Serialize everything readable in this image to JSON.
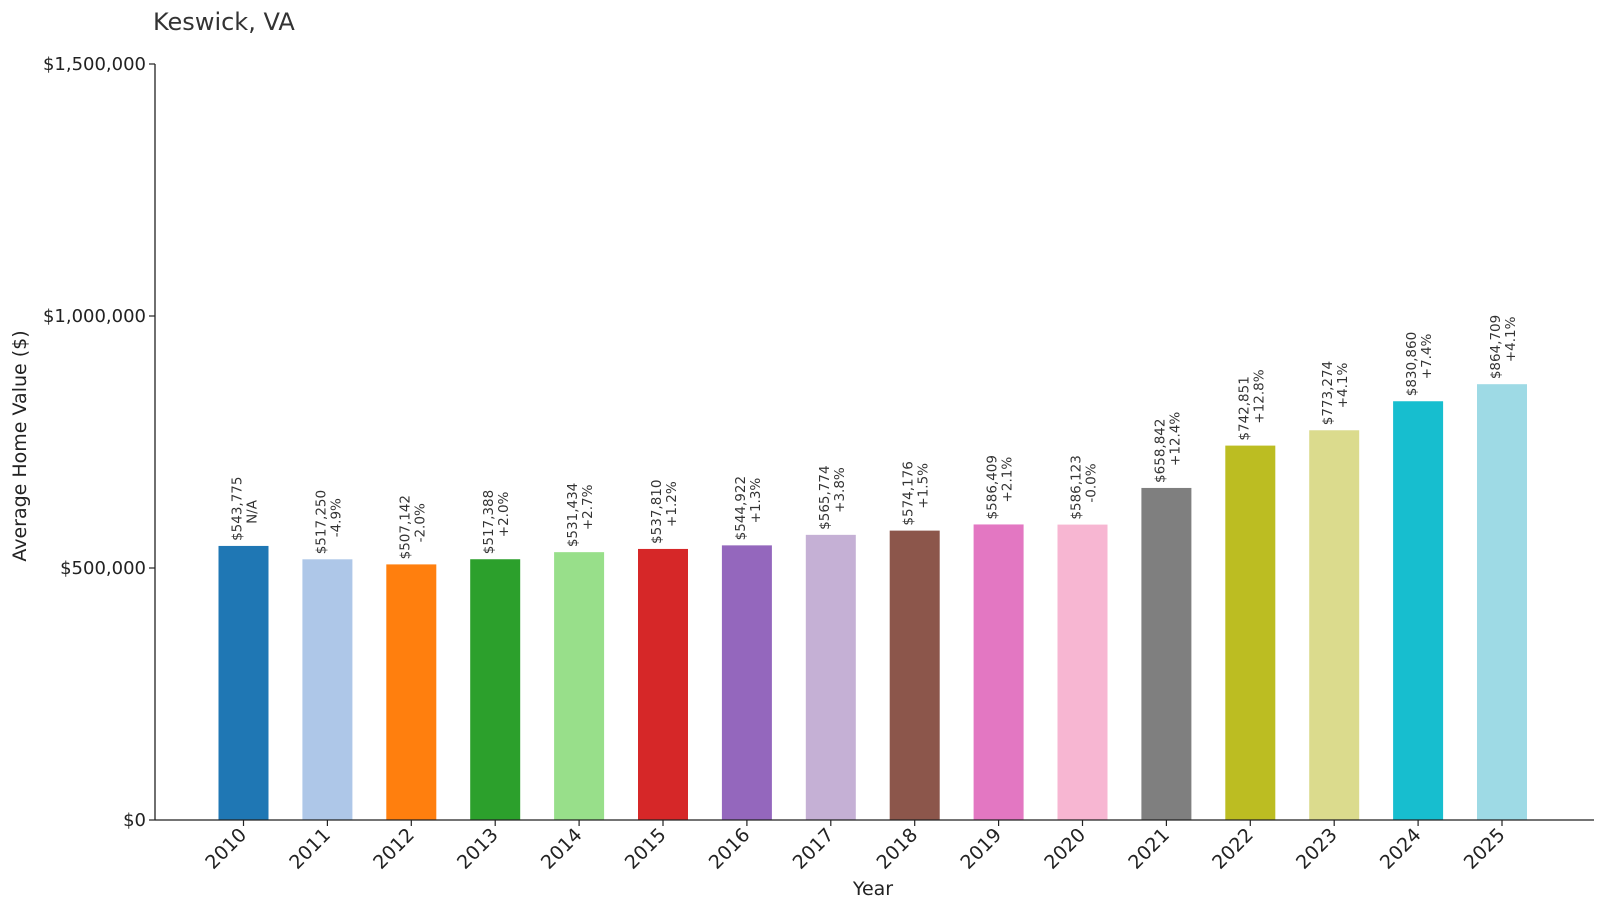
{
  "chart_data": {
    "type": "bar",
    "title": "Keswick, VA",
    "xlabel": "Year",
    "ylabel": "Average Home Value ($)",
    "ylim": [
      0,
      1500000
    ],
    "yticks": [
      0,
      500000,
      1000000,
      1500000
    ],
    "ytick_labels": [
      "$0",
      "$500,000",
      "$1,000,000",
      "$1,500,000"
    ],
    "grid": false,
    "categories": [
      "2010",
      "2011",
      "2012",
      "2013",
      "2014",
      "2015",
      "2016",
      "2017",
      "2018",
      "2019",
      "2020",
      "2021",
      "2022",
      "2023",
      "2024",
      "2025"
    ],
    "values": [
      543775,
      517250,
      507142,
      517388,
      531434,
      537810,
      544922,
      565774,
      574176,
      586409,
      586123,
      658842,
      742851,
      773274,
      830860,
      864709
    ],
    "value_labels": [
      "$543,775",
      "$517,250",
      "$507,142",
      "$517,388",
      "$531,434",
      "$537,810",
      "$544,922",
      "$565,774",
      "$574,176",
      "$586,409",
      "$586,123",
      "$658,842",
      "$742,851",
      "$773,274",
      "$830,860",
      "$864,709"
    ],
    "change_labels": [
      "N/A",
      "-4.9%",
      "-2.0%",
      "+2.0%",
      "+2.7%",
      "+1.2%",
      "+1.3%",
      "+3.8%",
      "+1.5%",
      "+2.1%",
      "-0.0%",
      "+12.4%",
      "+12.8%",
      "+4.1%",
      "+7.4%",
      "+4.1%"
    ],
    "colors": [
      "#1f77b4",
      "#aec7e8",
      "#ff7f0e",
      "#2ca02c",
      "#98df8a",
      "#d62728",
      "#9467bd",
      "#c5b0d5",
      "#8c564b",
      "#e377c2",
      "#f7b6d2",
      "#7f7f7f",
      "#bcbd22",
      "#dbdb8d",
      "#17becf",
      "#9edae5"
    ]
  }
}
